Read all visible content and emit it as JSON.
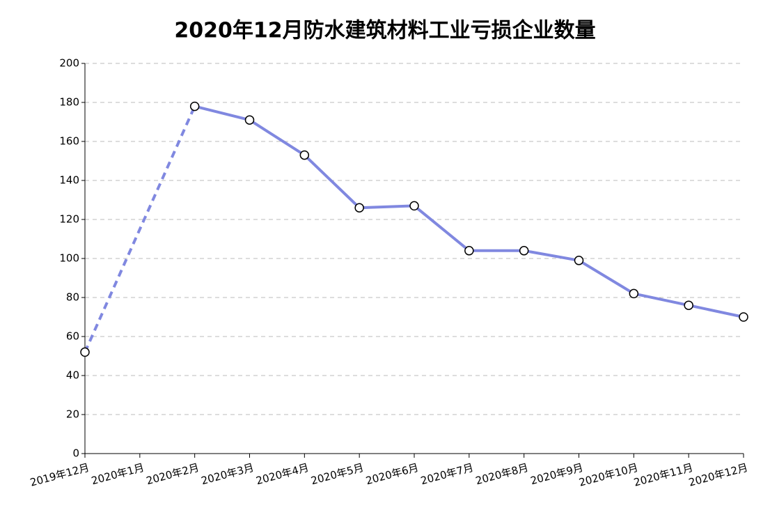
{
  "chart_data": {
    "type": "line",
    "title": "2020年12月防水建筑材料工业亏损企业数量",
    "categories": [
      "2019年12月",
      "2020年1月",
      "2020年2月",
      "2020年3月",
      "2020年4月",
      "2020年5月",
      "2020年6月",
      "2020年7月",
      "2020年8月",
      "2020年9月",
      "2020年10月",
      "2020年11月",
      "2020年12月"
    ],
    "values": [
      52,
      null,
      178,
      171,
      153,
      126,
      127,
      104,
      104,
      99,
      82,
      76,
      70
    ],
    "color": "#8088e0",
    "ylim": [
      0,
      200
    ],
    "yticks": [
      0,
      20,
      40,
      60,
      80,
      100,
      120,
      140,
      160,
      180,
      200
    ],
    "grid": true
  }
}
